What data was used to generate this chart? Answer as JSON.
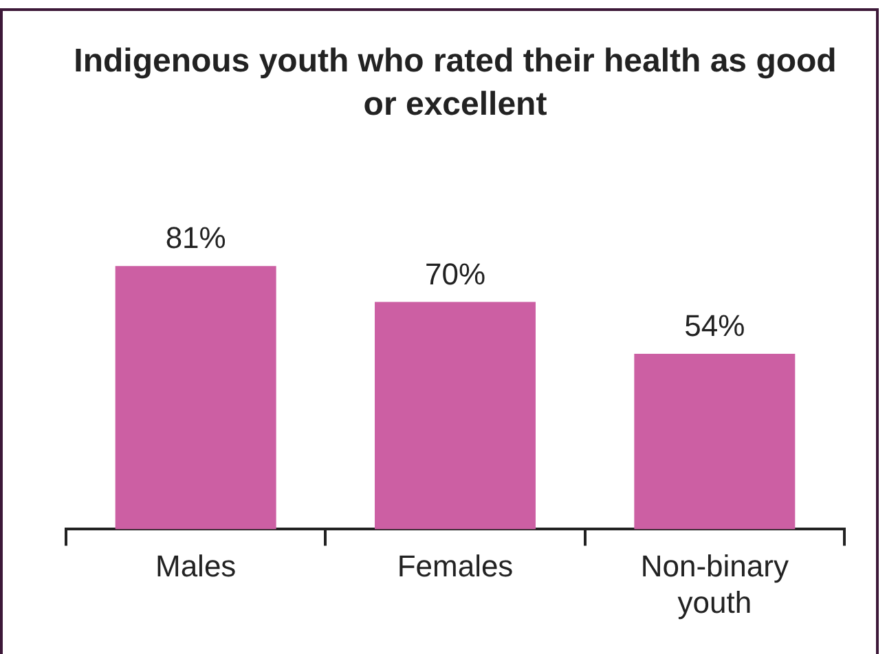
{
  "chart_data": {
    "type": "bar",
    "title": "Indigenous youth who rated their health as good or excellent",
    "categories": [
      "Males",
      "Females",
      "Non-binary youth"
    ],
    "values": [
      81,
      70,
      54
    ],
    "color": "#cc5fa3",
    "value_labels": [
      "81%",
      "70%",
      "54%"
    ],
    "tick_labels": "x",
    "grid": false,
    "legend": false
  }
}
